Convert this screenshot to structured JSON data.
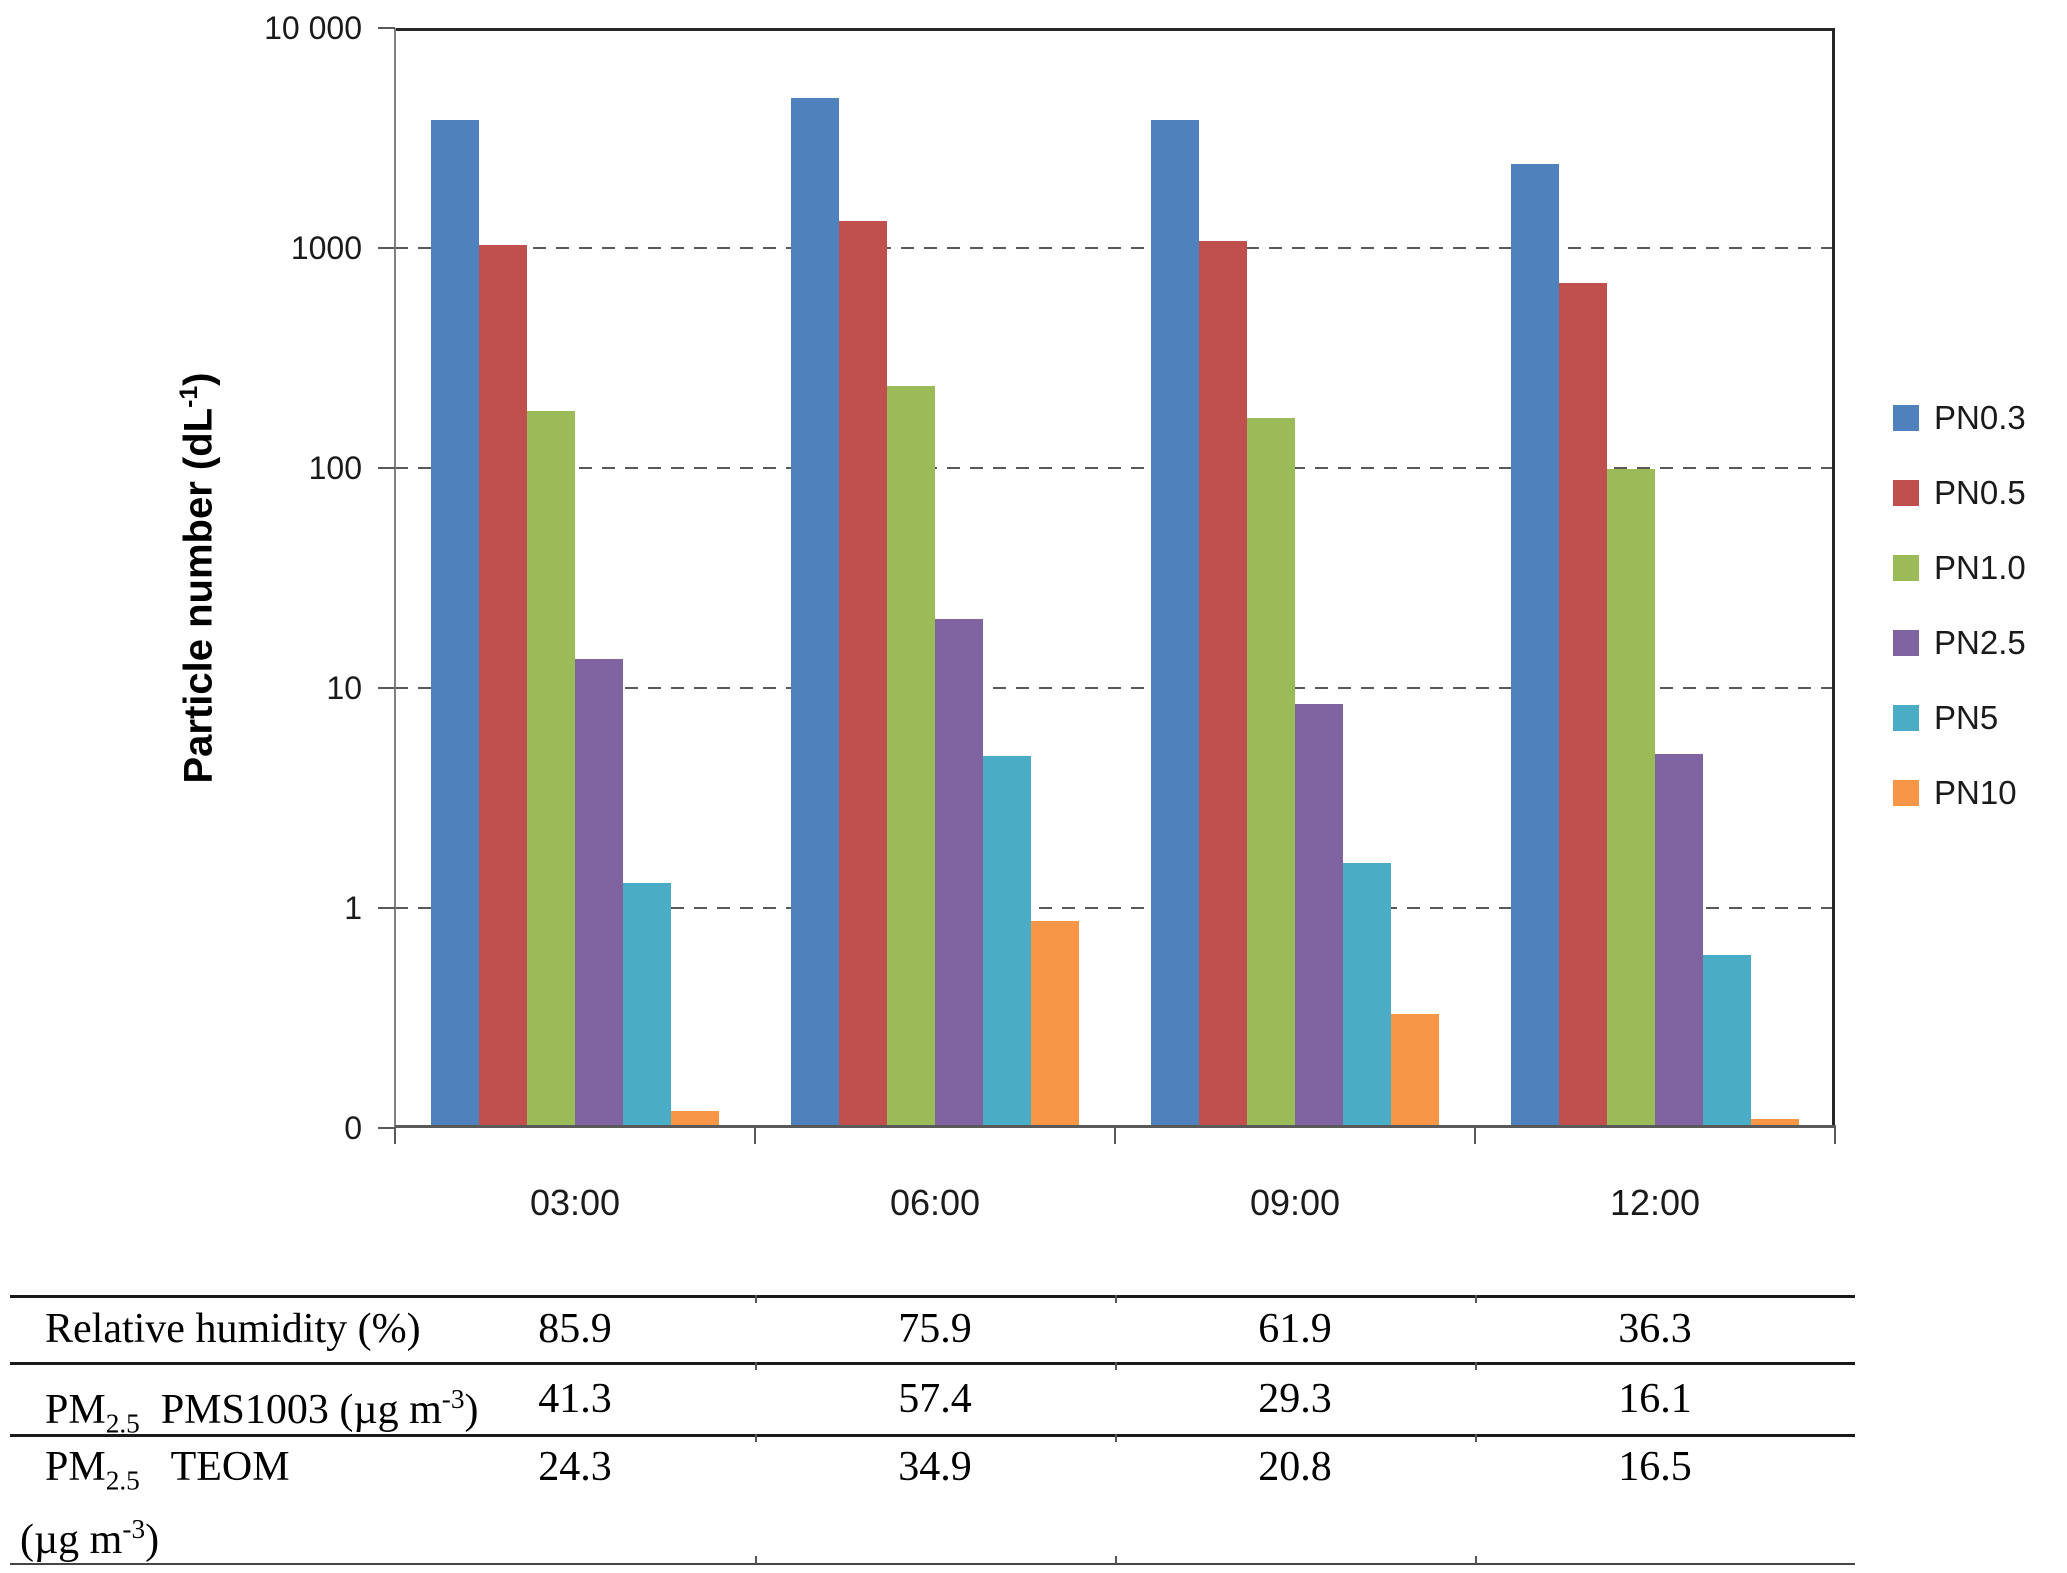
{
  "chart_data": {
    "type": "bar",
    "title": "",
    "ylabel_rich": [
      {
        "t": "Particle number (dL"
      },
      {
        "sup": "-1"
      },
      {
        "t": ")"
      }
    ],
    "xlabel": "",
    "categories": [
      "03:00",
      "06:00",
      "09:00",
      "12:00"
    ],
    "series": [
      {
        "name": "PN0.3",
        "color": "#4F81BD",
        "values": [
          3800,
          4800,
          3800,
          2400
        ]
      },
      {
        "name": "PN0.5",
        "color": "#C0504D",
        "values": [
          1030,
          1330,
          1080,
          695
        ]
      },
      {
        "name": "PN1.0",
        "color": "#9BBB59",
        "values": [
          182,
          235,
          168,
          99
        ]
      },
      {
        "name": "PN2.5",
        "color": "#8064A2",
        "values": [
          13.6,
          20.5,
          8.5,
          5.0
        ]
      },
      {
        "name": "PN5",
        "color": "#4BACC6",
        "values": [
          1.3,
          4.9,
          1.6,
          0.61
        ]
      },
      {
        "name": "PN10",
        "color": "#F79646",
        "values": [
          0.12,
          0.87,
          0.33,
          0.11
        ]
      }
    ],
    "y_axis": {
      "scale": "log",
      "min_value": 0.1,
      "max_value": 10000,
      "ticks": [
        {
          "label": "10 000",
          "value": 10000,
          "grid": false
        },
        {
          "label": "1000",
          "value": 1000,
          "grid": true
        },
        {
          "label": "100",
          "value": 100,
          "grid": true
        },
        {
          "label": "10",
          "value": 10,
          "grid": true
        },
        {
          "label": "1",
          "value": 1,
          "grid": true
        },
        {
          "label": "0",
          "value": 0.1,
          "grid": false
        }
      ]
    },
    "legend_position": "right",
    "grid": "dashed-horizontal"
  },
  "table": {
    "rows": [
      {
        "label_rich": [
          {
            "t": "Relative humidity (%)"
          }
        ],
        "values": [
          "85.9",
          "75.9",
          "61.9",
          "36.3"
        ]
      },
      {
        "label_rich": [
          {
            "t": "PM"
          },
          {
            "sub": "2.5"
          },
          {
            "t": "  PMS1003 (µg m"
          },
          {
            "sup": "-3"
          },
          {
            "t": ")"
          }
        ],
        "values": [
          "41.3",
          "57.4",
          "29.3",
          "16.1"
        ]
      },
      {
        "label_rich": [
          {
            "t": "PM"
          },
          {
            "sub": "2.5"
          },
          {
            "t": "   TEOM"
          }
        ],
        "label_line2": [
          {
            "t": "(µg m"
          },
          {
            "sup": "-3"
          },
          {
            "t": ")"
          }
        ],
        "values": [
          "24.3",
          "34.9",
          "20.8",
          "16.5"
        ]
      }
    ]
  }
}
